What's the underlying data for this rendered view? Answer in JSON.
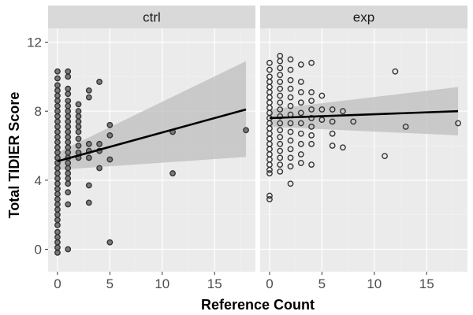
{
  "chart_data": {
    "type": "scatter",
    "xlabel": "Reference Count",
    "ylabel": "Total TIDIER Score",
    "xlim": [
      -0.9,
      18.9
    ],
    "ylim": [
      -1.3,
      12.8
    ],
    "x_ticks": [
      0,
      5,
      10,
      15
    ],
    "y_ticks": [
      0,
      4,
      8,
      12
    ],
    "x_tick_labels": [
      "0",
      "5",
      "10",
      "15"
    ],
    "y_tick_labels": [
      "0",
      "4",
      "8",
      "12"
    ],
    "grid": true,
    "colors": {
      "panel_background": "#ebebeb",
      "strip_background": "#d9d9d9",
      "grid_major": "#ffffff",
      "grid_minor": "#f2f2f2",
      "confidence_band": "#bdbdbd",
      "fit_line": "#000000",
      "point_stroke": "#333333",
      "ctrl_point_fill": "#7a7a7a",
      "exp_point_fill": "none"
    },
    "panels": [
      {
        "label": "ctrl",
        "fit": {
          "x": [
            0,
            18
          ],
          "y": [
            5.1,
            8.1
          ]
        },
        "band": {
          "x": [
            0,
            18
          ],
          "upper": [
            5.6,
            10.9
          ],
          "lower": [
            4.6,
            5.35
          ]
        },
        "points": [
          [
            0,
            10.3
          ],
          [
            0,
            9.9
          ],
          [
            0,
            9.5
          ],
          [
            0,
            9.2
          ],
          [
            0,
            8.9
          ],
          [
            0,
            8.6
          ],
          [
            0,
            8.3
          ],
          [
            0,
            8.0
          ],
          [
            0,
            7.7
          ],
          [
            0,
            7.4
          ],
          [
            0,
            7.1
          ],
          [
            0,
            6.8
          ],
          [
            0,
            6.5
          ],
          [
            0,
            6.2
          ],
          [
            0,
            5.9
          ],
          [
            0,
            5.6
          ],
          [
            0,
            5.3
          ],
          [
            0,
            5.0
          ],
          [
            0,
            4.7
          ],
          [
            0,
            4.4
          ],
          [
            0,
            4.1
          ],
          [
            0,
            3.8
          ],
          [
            0,
            3.5
          ],
          [
            0,
            3.2
          ],
          [
            0,
            2.9
          ],
          [
            0,
            2.6
          ],
          [
            0,
            2.3
          ],
          [
            0,
            2.0
          ],
          [
            0,
            1.7
          ],
          [
            0,
            1.4
          ],
          [
            0,
            1.0
          ],
          [
            0,
            0.7
          ],
          [
            0,
            0.4
          ],
          [
            0,
            0.1
          ],
          [
            0,
            -0.2
          ],
          [
            1,
            10.3
          ],
          [
            1,
            10.0
          ],
          [
            1,
            9.3
          ],
          [
            1,
            9.0
          ],
          [
            1,
            8.6
          ],
          [
            1,
            8.3
          ],
          [
            1,
            8.0
          ],
          [
            1,
            7.7
          ],
          [
            1,
            7.4
          ],
          [
            1,
            7.1
          ],
          [
            1,
            6.8
          ],
          [
            1,
            6.5
          ],
          [
            1,
            6.2
          ],
          [
            1,
            5.9
          ],
          [
            1,
            5.6
          ],
          [
            1,
            5.3
          ],
          [
            1,
            5.0
          ],
          [
            1,
            4.7
          ],
          [
            1,
            4.4
          ],
          [
            1,
            4.1
          ],
          [
            1,
            3.8
          ],
          [
            1,
            3.3
          ],
          [
            1,
            2.6
          ],
          [
            1,
            0.0
          ],
          [
            2,
            8.4
          ],
          [
            2,
            8.0
          ],
          [
            2,
            7.7
          ],
          [
            2,
            7.4
          ],
          [
            2,
            7.1
          ],
          [
            2,
            6.8
          ],
          [
            2,
            6.4
          ],
          [
            2,
            6.0
          ],
          [
            2,
            5.6
          ],
          [
            2,
            5.3
          ],
          [
            3,
            9.2
          ],
          [
            3,
            8.8
          ],
          [
            3,
            6.1
          ],
          [
            3,
            5.7
          ],
          [
            3,
            5.3
          ],
          [
            3,
            3.7
          ],
          [
            3,
            2.7
          ],
          [
            4,
            9.7
          ],
          [
            4,
            6.1
          ],
          [
            4,
            5.7
          ],
          [
            4,
            4.7
          ],
          [
            5,
            7.2
          ],
          [
            5,
            6.6
          ],
          [
            5,
            5.2
          ],
          [
            5,
            0.4
          ],
          [
            11,
            4.4
          ],
          [
            11,
            6.8
          ],
          [
            18,
            6.9
          ]
        ]
      },
      {
        "label": "exp",
        "fit": {
          "x": [
            0,
            18
          ],
          "y": [
            7.6,
            8.0
          ]
        },
        "band": {
          "x": [
            0,
            18
          ],
          "upper": [
            8.1,
            9.4
          ],
          "lower": [
            7.1,
            6.6
          ]
        },
        "points": [
          [
            0,
            10.8
          ],
          [
            0,
            10.4
          ],
          [
            0,
            10.0
          ],
          [
            0,
            9.7
          ],
          [
            0,
            9.4
          ],
          [
            0,
            9.1
          ],
          [
            0,
            8.8
          ],
          [
            0,
            8.5
          ],
          [
            0,
            8.2
          ],
          [
            0,
            7.9
          ],
          [
            0,
            7.6
          ],
          [
            0,
            7.3
          ],
          [
            0,
            7.0
          ],
          [
            0,
            6.7
          ],
          [
            0,
            6.4
          ],
          [
            0,
            6.1
          ],
          [
            0,
            5.8
          ],
          [
            0,
            5.5
          ],
          [
            0,
            5.2
          ],
          [
            0,
            4.9
          ],
          [
            0,
            4.6
          ],
          [
            0,
            4.4
          ],
          [
            0,
            3.1
          ],
          [
            0,
            2.9
          ],
          [
            1,
            11.2
          ],
          [
            1,
            10.9
          ],
          [
            1,
            10.5
          ],
          [
            1,
            10.1
          ],
          [
            1,
            9.7
          ],
          [
            1,
            9.3
          ],
          [
            1,
            8.9
          ],
          [
            1,
            8.5
          ],
          [
            1,
            8.1
          ],
          [
            1,
            7.7
          ],
          [
            1,
            7.3
          ],
          [
            1,
            6.9
          ],
          [
            1,
            6.5
          ],
          [
            1,
            6.1
          ],
          [
            1,
            5.7
          ],
          [
            1,
            5.3
          ],
          [
            1,
            4.9
          ],
          [
            1,
            4.5
          ],
          [
            2,
            11.0
          ],
          [
            2,
            10.4
          ],
          [
            2,
            9.8
          ],
          [
            2,
            9.3
          ],
          [
            2,
            8.8
          ],
          [
            2,
            8.3
          ],
          [
            2,
            7.8
          ],
          [
            2,
            7.3
          ],
          [
            2,
            6.8
          ],
          [
            2,
            6.3
          ],
          [
            2,
            5.8
          ],
          [
            2,
            5.3
          ],
          [
            2,
            4.8
          ],
          [
            2,
            3.8
          ],
          [
            3,
            10.7
          ],
          [
            3,
            9.7
          ],
          [
            3,
            9.1
          ],
          [
            3,
            8.5
          ],
          [
            3,
            7.9
          ],
          [
            3,
            7.3
          ],
          [
            3,
            6.7
          ],
          [
            3,
            6.1
          ],
          [
            3,
            5.5
          ],
          [
            3,
            5.0
          ],
          [
            4,
            10.8
          ],
          [
            4,
            9.1
          ],
          [
            4,
            8.6
          ],
          [
            4,
            8.1
          ],
          [
            4,
            7.6
          ],
          [
            4,
            7.1
          ],
          [
            4,
            6.6
          ],
          [
            4,
            6.1
          ],
          [
            4,
            4.9
          ],
          [
            5,
            8.9
          ],
          [
            5,
            8.1
          ],
          [
            5,
            7.5
          ],
          [
            6,
            8.1
          ],
          [
            6,
            7.4
          ],
          [
            6,
            6.7
          ],
          [
            6,
            6.0
          ],
          [
            7,
            8.0
          ],
          [
            7,
            5.9
          ],
          [
            8,
            7.4
          ],
          [
            11,
            5.4
          ],
          [
            12,
            10.3
          ],
          [
            13,
            7.1
          ],
          [
            18,
            7.3
          ]
        ]
      }
    ]
  }
}
